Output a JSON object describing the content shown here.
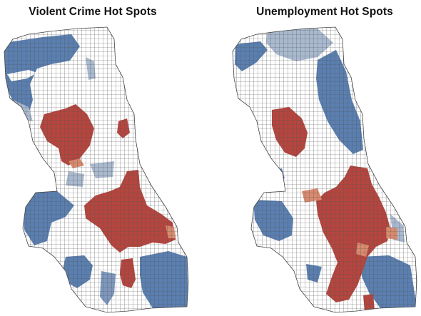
{
  "maps": [
    {
      "title": "Violent Crime Hot Spots",
      "variable": "violent crime",
      "legend_colors": {
        "cold": "#5a7fb0",
        "cold_light": "#a9b9cf",
        "neutral": "#ffffff",
        "hot_light": "#d98a6e",
        "hot": "#b5453e"
      }
    },
    {
      "title": "Unemployment Hot Spots",
      "variable": "unemployment",
      "legend_colors": {
        "cold": "#5a7fb0",
        "cold_light": "#a9b9cf",
        "neutral": "#ffffff",
        "hot_light": "#d98a6e",
        "hot": "#b5453e"
      }
    }
  ]
}
